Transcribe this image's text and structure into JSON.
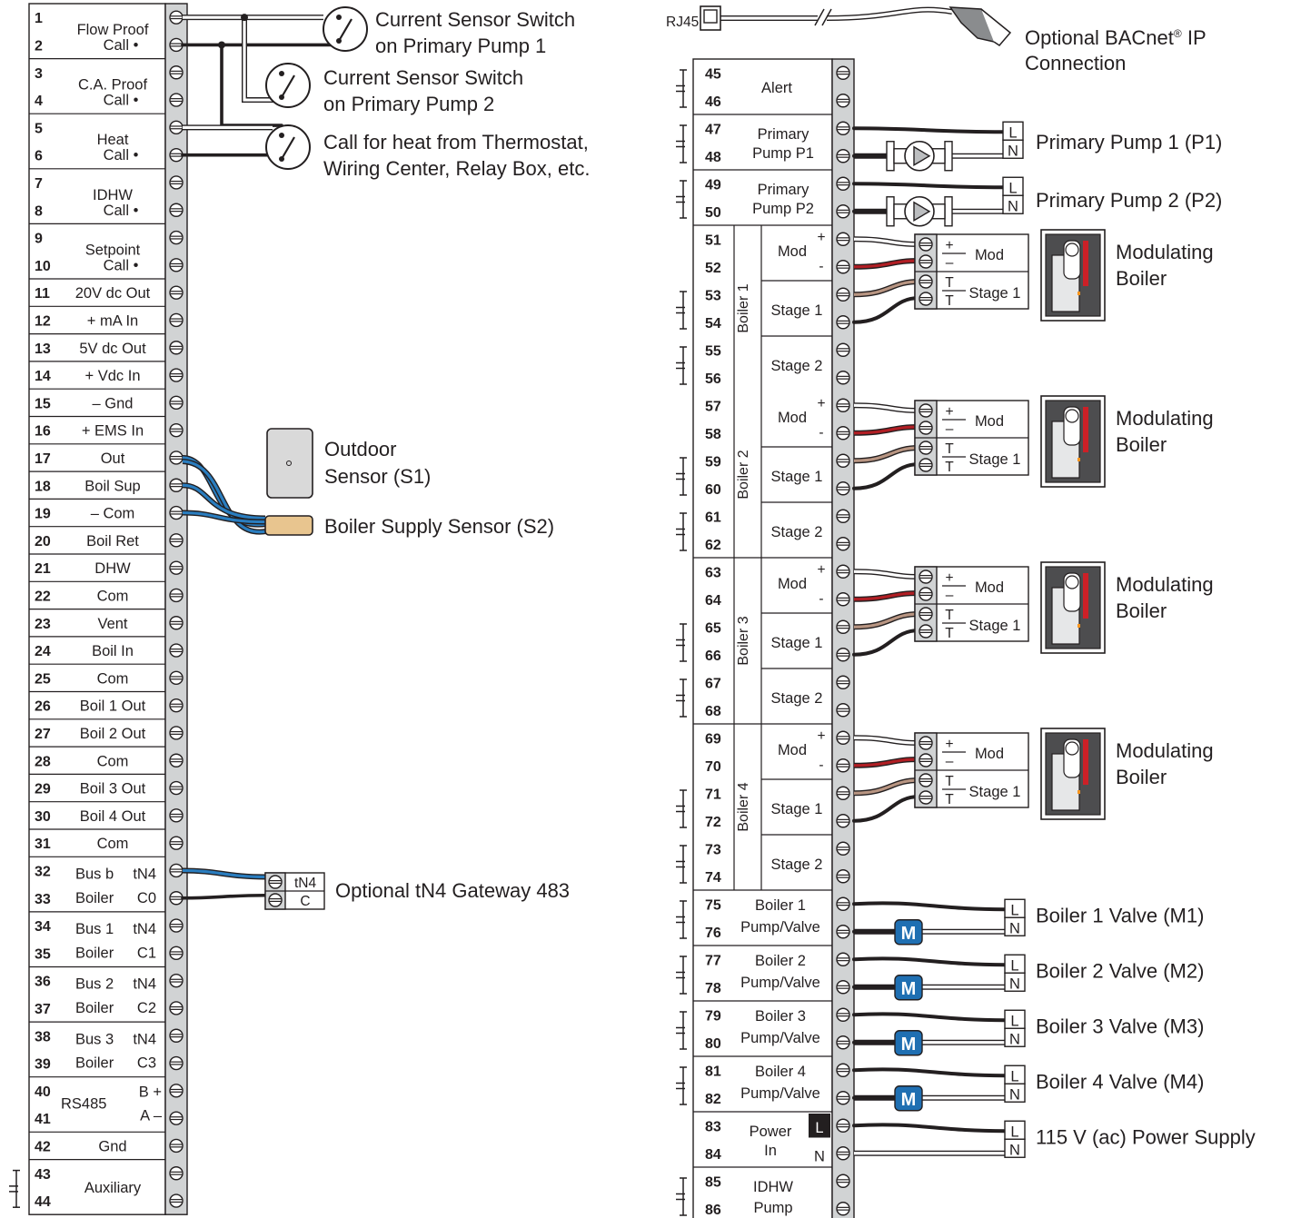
{
  "left_block": {
    "terminals": [
      {
        "n": "1",
        "label": "Flow Proof",
        "label_align": "c"
      },
      {
        "n": "2",
        "label": "Call •",
        "label_align": "c"
      },
      {
        "n": "3",
        "label": "C.A. Proof",
        "label_align": "c"
      },
      {
        "n": "4",
        "label": "Call •",
        "label_align": "c"
      },
      {
        "n": "5",
        "label": "Heat",
        "label_align": "c"
      },
      {
        "n": "6",
        "label": "Call  •",
        "label_align": "c"
      },
      {
        "n": "7",
        "label": "IDHW",
        "label_align": "c"
      },
      {
        "n": "8",
        "label": "Call •",
        "label_align": "c"
      },
      {
        "n": "9",
        "label": "Setpoint",
        "label_align": "c"
      },
      {
        "n": "10",
        "label": "Call •",
        "label_align": "c"
      },
      {
        "n": "11",
        "label": "20V dc Out",
        "label_align": "c"
      },
      {
        "n": "12",
        "label": "+ mA In",
        "label_align": "c"
      },
      {
        "n": "13",
        "label": "5V dc Out",
        "label_align": "c"
      },
      {
        "n": "14",
        "label": "+ Vdc In",
        "label_align": "c"
      },
      {
        "n": "15",
        "label": "– Gnd",
        "label_align": "c"
      },
      {
        "n": "16",
        "label": "+ EMS In",
        "label_align": "c"
      },
      {
        "n": "17",
        "label": "Out",
        "label_align": "c"
      },
      {
        "n": "18",
        "label": "Boil Sup",
        "label_align": "c"
      },
      {
        "n": "19",
        "label": "– Com",
        "label_align": "c"
      },
      {
        "n": "20",
        "label": "Boil Ret",
        "label_align": "c"
      },
      {
        "n": "21",
        "label": "DHW",
        "label_align": "c"
      },
      {
        "n": "22",
        "label": "Com",
        "label_align": "c"
      },
      {
        "n": "23",
        "label": "Vent",
        "label_align": "c"
      },
      {
        "n": "24",
        "label": "Boil In",
        "label_align": "c"
      },
      {
        "n": "25",
        "label": "Com",
        "label_align": "c"
      },
      {
        "n": "26",
        "label": "Boil 1 Out",
        "label_align": "c"
      },
      {
        "n": "27",
        "label": "Boil 2 Out",
        "label_align": "c"
      },
      {
        "n": "28",
        "label": "Com",
        "label_align": "c"
      },
      {
        "n": "29",
        "label": "Boil 3 Out",
        "label_align": "c"
      },
      {
        "n": "30",
        "label": "Boil 4 Out",
        "label_align": "c"
      },
      {
        "n": "31",
        "label": "Com",
        "label_align": "c"
      },
      {
        "n": "32",
        "label": "Bus b",
        "label2": "tN4",
        "label_align": "c"
      },
      {
        "n": "33",
        "label": "Boiler",
        "label2": "C0",
        "label_align": "c"
      },
      {
        "n": "34",
        "label": "Bus 1",
        "label2": "tN4",
        "label_align": "c"
      },
      {
        "n": "35",
        "label": "Boiler",
        "label2": "C1",
        "label_align": "c"
      },
      {
        "n": "36",
        "label": "Bus 2",
        "label2": "tN4",
        "label_align": "c"
      },
      {
        "n": "37",
        "label": "Boiler",
        "label2": "C2",
        "label_align": "c"
      },
      {
        "n": "38",
        "label": "Bus 3",
        "label2": "tN4",
        "label_align": "c"
      },
      {
        "n": "39",
        "label": "Boiler",
        "label2": "C3",
        "label_align": "c"
      },
      {
        "n": "40",
        "label": "RS485",
        "label2": "B +",
        "label_align": "c"
      },
      {
        "n": "41",
        "label": "",
        "label2": "A –",
        "label_align": "c"
      },
      {
        "n": "42",
        "label": "Gnd",
        "label_align": "c"
      },
      {
        "n": "43",
        "label": "Auxiliary",
        "label_align": "c"
      },
      {
        "n": "44",
        "label": "",
        "label_align": "c"
      }
    ]
  },
  "right_block": {
    "rj45_label": "RJ45",
    "terminals": [
      "45",
      "46",
      "47",
      "48",
      "49",
      "50",
      "51",
      "52",
      "53",
      "54",
      "55",
      "56",
      "57",
      "58",
      "59",
      "60",
      "61",
      "62",
      "63",
      "64",
      "65",
      "66",
      "67",
      "68",
      "69",
      "70",
      "71",
      "72",
      "73",
      "74",
      "75",
      "76",
      "77",
      "78",
      "79",
      "80",
      "81",
      "82",
      "83",
      "84",
      "85",
      "86"
    ],
    "groups": {
      "alert": "Alert",
      "pump_p1": [
        "Primary",
        "Pump P1"
      ],
      "pump_p2": [
        "Primary",
        "Pump P2"
      ],
      "boilers": [
        "Boiler 1",
        "Boiler 2",
        "Boiler 3",
        "Boiler 4"
      ],
      "mod": "Mod",
      "stage1": "Stage 1",
      "stage2": "Stage 2",
      "plus": "+",
      "minus": "-",
      "pump_valves": [
        [
          "Boiler 1",
          "Pump/Valve"
        ],
        [
          "Boiler 2",
          "Pump/Valve"
        ],
        [
          "Boiler 3",
          "Pump/Valve"
        ],
        [
          "Boiler 4",
          "Pump/Valve"
        ]
      ],
      "power_in": [
        "Power",
        "In"
      ],
      "power_l": "L",
      "power_n": "N",
      "idhw_pump": [
        "IDHW",
        "Pump"
      ]
    }
  },
  "external": {
    "current_sensor_1": [
      "Current Sensor Switch",
      "on Primary Pump 1"
    ],
    "current_sensor_2": [
      "Current Sensor Switch",
      "on Primary Pump 2"
    ],
    "call_for_heat": [
      "Call for heat from Thermostat,",
      "Wiring Center, Relay Box, etc."
    ],
    "outdoor_sensor": [
      "Outdoor",
      "Sensor (S1)"
    ],
    "boiler_supply_sensor": "Boiler Supply Sensor (S2)",
    "gateway": "Optional tN4 Gateway 483",
    "gateway_terms": [
      "tN4",
      "C"
    ],
    "bacnet": [
      "Optional BACnet",
      "®",
      " IP",
      "Connection"
    ],
    "primary_pump_1": "Primary Pump 1 (P1)",
    "primary_pump_2": "Primary Pump 2 (P2)",
    "boiler_module": {
      "plus": "+",
      "minus": "–",
      "mod": "Mod",
      "t": "T",
      "stage1": "Stage 1"
    },
    "modulating_boiler": [
      "Modulating",
      "Boiler"
    ],
    "valves": [
      "Boiler 1 Valve (M1)",
      "Boiler 2 Valve (M2)",
      "Boiler 3 Valve (M3)",
      "Boiler 4 Valve (M4)"
    ],
    "valve_icon": "M",
    "power_supply": "115 V (ac) Power Supply",
    "l": "L",
    "n": "N"
  },
  "colors": {
    "ink": "#231f20",
    "panel": "#d1d3d4",
    "blue_wire": "#2a7dbf",
    "red_wire": "#b11e24",
    "tan_wire": "#b89582",
    "valve_blue": "#1f6fb2",
    "sensor_tan": "#e8c58f",
    "boiler_red": "#cc2027"
  }
}
